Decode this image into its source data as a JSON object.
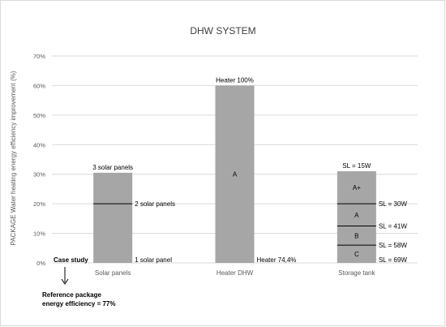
{
  "chart_data": {
    "type": "bar",
    "title": "DHW SYSTEM",
    "ylabel": "PACKAGE  Water heating energy efficiency improvement  (%)",
    "ylim": [
      0,
      70
    ],
    "yticks": [
      0,
      10,
      20,
      30,
      40,
      50,
      60,
      70
    ],
    "ytick_format": "percent",
    "grid": true,
    "categories": [
      "Solar panels",
      "Heater DHW",
      "Storage tank"
    ],
    "values": [
      30.5,
      60,
      31
    ],
    "bar_color": "#a6a6a6",
    "segments": [
      {
        "category": "Solar panels",
        "boundaries": [
          20
        ],
        "labels": []
      },
      {
        "category": "Heater DHW",
        "boundaries": [],
        "labels": [
          "A"
        ]
      },
      {
        "category": "Storage tank",
        "boundaries": [
          20,
          12.5,
          6
        ],
        "labels": [
          "A+",
          "A",
          "B",
          "C"
        ]
      }
    ],
    "annotations": [
      {
        "text": "3 solar panels",
        "category": "Solar panels",
        "y": 30.5,
        "position": "above"
      },
      {
        "text": "2 solar panels",
        "category": "Solar panels",
        "y": 20,
        "position": "right"
      },
      {
        "text": "1 solar panel",
        "category": "Solar panels",
        "y": 0,
        "position": "right"
      },
      {
        "text": "Heater 100%",
        "category": "Heater DHW",
        "y": 60,
        "position": "above"
      },
      {
        "text": "Heater 74,4%",
        "category": "Heater DHW",
        "y": 0,
        "position": "right"
      },
      {
        "text": "SL = 15W",
        "category": "Storage tank",
        "y": 31,
        "position": "above"
      },
      {
        "text": "SL = 30W",
        "category": "Storage tank",
        "y": 20,
        "position": "right"
      },
      {
        "text": "SL = 41W",
        "category": "Storage tank",
        "y": 12.5,
        "position": "right"
      },
      {
        "text": "SL = 58W",
        "category": "Storage tank",
        "y": 6,
        "position": "right"
      },
      {
        "text": "SL = 69W",
        "category": "Storage tank",
        "y": 0,
        "position": "right"
      }
    ],
    "case_study": {
      "label": "Case study",
      "reference_lines": [
        "Reference package",
        "energy efficiency = 77%"
      ]
    }
  }
}
